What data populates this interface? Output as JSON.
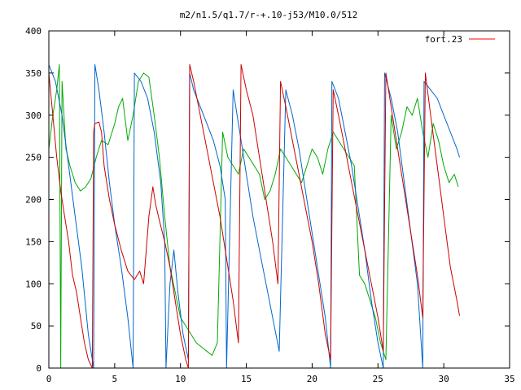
{
  "chart_data": {
    "type": "line",
    "title": "m2/n1.5/q1.7/r-+.10-j53/M10.0/512",
    "xlim": [
      0,
      35
    ],
    "ylim": [
      0,
      400
    ],
    "x_ticks": [
      "0",
      "5",
      "10",
      "15",
      "20",
      "25",
      "30",
      "35"
    ],
    "y_ticks": [
      "0",
      "50",
      "100",
      "150",
      "200",
      "250",
      "300",
      "350",
      "400"
    ],
    "legend": {
      "entry": "fort.23",
      "color": "#ff0000",
      "placement": "top-right"
    },
    "series": [
      {
        "name": "fort.23",
        "color": "#cc0000",
        "x": [
          0.0,
          0.3,
          0.6,
          0.9,
          1.2,
          1.5,
          1.8,
          2.1,
          2.4,
          2.7,
          3.0,
          3.3,
          3.4,
          3.5,
          3.8,
          4.0,
          4.2,
          4.6,
          5.0,
          5.5,
          6.0,
          6.5,
          6.9,
          7.2,
          7.6,
          7.9,
          8.1,
          8.4,
          8.8,
          9.2,
          9.6,
          10.0,
          10.4,
          10.6,
          10.7,
          11.0,
          11.5,
          12.0,
          12.5,
          13.0,
          13.5,
          14.0,
          14.4,
          14.6,
          15.0,
          15.5,
          16.0,
          16.5,
          17.0,
          17.4,
          17.6,
          18.0,
          18.5,
          19.0,
          19.5,
          20.0,
          20.5,
          21.0,
          21.4,
          21.6,
          22.0,
          22.5,
          23.0,
          23.5,
          24.0,
          24.5,
          25.0,
          25.4,
          25.6,
          26.0,
          26.5,
          27.0,
          27.5,
          28.0,
          28.4,
          28.6,
          29.0,
          29.5,
          30.0,
          30.5,
          31.0,
          31.2
        ],
        "y": [
          350,
          300,
          250,
          210,
          180,
          150,
          110,
          90,
          60,
          30,
          10,
          0,
          280,
          290,
          292,
          280,
          240,
          200,
          170,
          140,
          115,
          105,
          115,
          100,
          180,
          215,
          195,
          175,
          150,
          120,
          80,
          40,
          10,
          0,
          360,
          340,
          300,
          260,
          220,
          180,
          130,
          80,
          30,
          360,
          330,
          300,
          250,
          200,
          150,
          100,
          340,
          310,
          270,
          230,
          190,
          150,
          100,
          40,
          10,
          330,
          300,
          260,
          220,
          180,
          140,
          100,
          60,
          20,
          350,
          310,
          260,
          210,
          160,
          110,
          60,
          350,
          300,
          240,
          180,
          120,
          80,
          62
        ]
      },
      {
        "name": "",
        "color": "#0066cc",
        "x": [
          0.0,
          0.5,
          1.0,
          1.5,
          2.0,
          2.5,
          3.0,
          3.4,
          3.5,
          3.8,
          4.2,
          4.6,
          5.0,
          5.5,
          6.0,
          6.4,
          6.5,
          7.0,
          7.5,
          8.0,
          8.5,
          8.8,
          8.9,
          9.2,
          9.5,
          9.8,
          10.2,
          10.6,
          10.7,
          11.0,
          11.5,
          12.0,
          12.5,
          13.0,
          13.4,
          13.5,
          14.0,
          14.5,
          15.0,
          15.5,
          16.0,
          16.5,
          17.0,
          17.5,
          18.0,
          18.5,
          19.0,
          19.5,
          20.0,
          20.5,
          21.0,
          21.4,
          21.5,
          22.0,
          22.5,
          23.0,
          23.5,
          24.0,
          24.5,
          25.0,
          25.4,
          25.5,
          26.0,
          26.5,
          27.0,
          27.5,
          28.0,
          28.4,
          28.5,
          29.0,
          29.5,
          30.0,
          30.5,
          31.0,
          31.2
        ],
        "y": [
          360,
          340,
          300,
          240,
          180,
          120,
          40,
          0,
          360,
          330,
          280,
          220,
          170,
          120,
          60,
          0,
          350,
          340,
          320,
          280,
          220,
          150,
          0,
          100,
          140,
          90,
          40,
          10,
          350,
          330,
          310,
          290,
          270,
          240,
          200,
          0,
          330,
          280,
          230,
          180,
          140,
          100,
          60,
          20,
          330,
          300,
          260,
          210,
          160,
          110,
          60,
          0,
          340,
          320,
          280,
          240,
          190,
          140,
          80,
          30,
          0,
          350,
          320,
          280,
          220,
          160,
          100,
          0,
          340,
          330,
          320,
          300,
          280,
          260,
          250
        ]
      },
      {
        "name": "",
        "color": "#00aa00",
        "x": [
          0.0,
          0.3,
          0.6,
          0.8,
          0.9,
          1.0,
          1.3,
          1.6,
          2.0,
          2.4,
          2.8,
          3.2,
          3.6,
          4.0,
          4.5,
          5.0,
          5.3,
          5.6,
          6.0,
          6.4,
          6.8,
          7.2,
          7.6,
          8.0,
          8.4,
          8.8,
          9.2,
          9.6,
          10.0,
          10.4,
          10.8,
          11.2,
          11.6,
          12.0,
          12.4,
          12.8,
          13.2,
          13.6,
          14.0,
          14.4,
          14.8,
          15.2,
          15.6,
          16.0,
          16.4,
          16.8,
          17.2,
          17.6,
          18.0,
          18.4,
          18.8,
          19.2,
          19.6,
          20.0,
          20.4,
          20.8,
          21.2,
          21.6,
          22.0,
          22.4,
          22.8,
          23.2,
          23.6,
          24.0,
          24.4,
          24.8,
          25.2,
          25.6,
          26.0,
          26.4,
          26.8,
          27.2,
          27.6,
          28.0,
          28.4,
          28.8,
          29.2,
          29.6,
          30.0,
          30.4,
          30.8,
          31.1
        ],
        "y": [
          260,
          300,
          330,
          360,
          0,
          340,
          260,
          240,
          220,
          210,
          215,
          225,
          250,
          270,
          265,
          290,
          310,
          320,
          270,
          300,
          340,
          350,
          345,
          300,
          250,
          180,
          120,
          90,
          60,
          50,
          40,
          30,
          25,
          20,
          15,
          30,
          280,
          250,
          240,
          230,
          260,
          250,
          240,
          230,
          200,
          210,
          230,
          260,
          250,
          240,
          230,
          220,
          240,
          260,
          250,
          230,
          260,
          280,
          270,
          260,
          250,
          240,
          110,
          100,
          80,
          60,
          30,
          10,
          300,
          260,
          280,
          310,
          300,
          320,
          280,
          250,
          290,
          270,
          240,
          220,
          230,
          215
        ]
      }
    ]
  }
}
